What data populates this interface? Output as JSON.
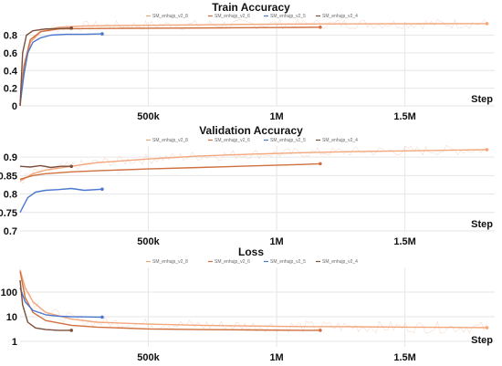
{
  "colors": {
    "SM_enhujp_v2_8": "#f2a77c",
    "SM_enhujp_v2_6": "#d0703e",
    "SM_enhujp_v2_5": "#4a78cf",
    "SM_enhujp_v2_4": "#7a4f3c",
    "noise": "#f3d3c2"
  },
  "chart_data": [
    {
      "type": "line",
      "title": "Train Accuracy",
      "xlabel": "Step",
      "ylabel": "",
      "xlim": [
        0,
        1850000
      ],
      "ylim": [
        0,
        0.95
      ],
      "yscale": "linear",
      "x_ticks": [
        500000,
        1000000,
        1500000
      ],
      "x_tick_labels": [
        "500k",
        "1M",
        "1.5M"
      ],
      "y_ticks": [
        0,
        0.2,
        0.4,
        0.6,
        0.8
      ],
      "y_tick_labels": [
        "0",
        "0.2",
        "0.4",
        "0.6",
        "0.8"
      ],
      "legend": [
        "SM_enhujp_v2_8",
        "SM_enhujp_v2_6",
        "SM_enhujp_v2_5",
        "SM_enhujp_v2_4"
      ],
      "series": [
        {
          "name": "SM_enhujp_v2_8",
          "x": [
            0,
            15000,
            40000,
            80000,
            150000,
            250000,
            400000,
            600000,
            800000,
            1000000,
            1200000,
            1400000,
            1600000,
            1800000,
            1820000
          ],
          "y": [
            0,
            0.4,
            0.72,
            0.84,
            0.89,
            0.905,
            0.91,
            0.915,
            0.92,
            0.925,
            0.927,
            0.928,
            0.929,
            0.93,
            0.93
          ]
        },
        {
          "name": "SM_enhujp_v2_6",
          "x": [
            0,
            15000,
            40000,
            80000,
            150000,
            250000,
            400000,
            600000,
            800000,
            1000000,
            1100000,
            1170000
          ],
          "y": [
            0,
            0.45,
            0.75,
            0.84,
            0.87,
            0.875,
            0.878,
            0.88,
            0.883,
            0.886,
            0.888,
            0.89
          ]
        },
        {
          "name": "SM_enhujp_v2_5",
          "x": [
            0,
            15000,
            30000,
            50000,
            80000,
            120000,
            180000,
            250000,
            320000
          ],
          "y": [
            0.02,
            0.35,
            0.6,
            0.72,
            0.77,
            0.8,
            0.81,
            0.81,
            0.815
          ]
        },
        {
          "name": "SM_enhujp_v2_4",
          "x": [
            0,
            10000,
            25000,
            50000,
            100000,
            150000,
            200000
          ],
          "y": [
            0.0,
            0.6,
            0.8,
            0.85,
            0.87,
            0.875,
            0.88
          ]
        }
      ]
    },
    {
      "type": "line",
      "title": "Validation Accuracy",
      "xlabel": "Step",
      "ylabel": "",
      "xlim": [
        0,
        1850000
      ],
      "ylim": [
        0.7,
        0.93
      ],
      "yscale": "linear",
      "x_ticks": [
        500000,
        1000000,
        1500000
      ],
      "x_tick_labels": [
        "500k",
        "1M",
        "1.5M"
      ],
      "y_ticks": [
        0.7,
        0.75,
        0.8,
        0.85,
        0.9
      ],
      "y_tick_labels": [
        "0.7",
        "0.75",
        "0.8",
        "0.85",
        "0.9"
      ],
      "legend": [
        "SM_enhujp_v2_8",
        "SM_enhujp_v2_6",
        "SM_enhujp_v2_5",
        "SM_enhujp_v2_4"
      ],
      "series": [
        {
          "name": "SM_enhujp_v2_8",
          "x": [
            0,
            50000,
            100000,
            200000,
            300000,
            500000,
            700000,
            900000,
            1100000,
            1300000,
            1500000,
            1700000,
            1820000
          ],
          "y": [
            0.835,
            0.855,
            0.865,
            0.875,
            0.885,
            0.895,
            0.903,
            0.908,
            0.912,
            0.915,
            0.917,
            0.919,
            0.92
          ]
        },
        {
          "name": "SM_enhujp_v2_6",
          "x": [
            0,
            50000,
            100000,
            200000,
            300000,
            500000,
            700000,
            900000,
            1100000,
            1170000
          ],
          "y": [
            0.84,
            0.85,
            0.855,
            0.86,
            0.863,
            0.868,
            0.872,
            0.876,
            0.88,
            0.882
          ]
        },
        {
          "name": "SM_enhujp_v2_5",
          "x": [
            0,
            30000,
            60000,
            100000,
            150000,
            200000,
            250000,
            320000
          ],
          "y": [
            0.75,
            0.79,
            0.805,
            0.81,
            0.812,
            0.815,
            0.81,
            0.813
          ]
        },
        {
          "name": "SM_enhujp_v2_4",
          "x": [
            0,
            40000,
            80000,
            120000,
            160000,
            200000
          ],
          "y": [
            0.875,
            0.873,
            0.877,
            0.872,
            0.875,
            0.875
          ]
        }
      ]
    },
    {
      "type": "line",
      "title": "Loss",
      "xlabel": "Step",
      "ylabel": "",
      "xlim": [
        0,
        1850000
      ],
      "ylim": [
        0.6,
        1000
      ],
      "yscale": "log",
      "x_ticks": [
        500000,
        1000000,
        1500000
      ],
      "x_tick_labels": [
        "500k",
        "1M",
        "1.5M"
      ],
      "y_ticks": [
        1,
        10,
        100
      ],
      "y_tick_labels": [
        "1",
        "10",
        "100"
      ],
      "legend": [
        "SM_enhujp_v2_8",
        "SM_enhujp_v2_6",
        "SM_enhujp_v2_5",
        "SM_enhujp_v2_4"
      ],
      "series": [
        {
          "name": "SM_enhujp_v2_8",
          "x": [
            0,
            20000,
            50000,
            100000,
            200000,
            300000,
            500000,
            700000,
            900000,
            1100000,
            1300000,
            1500000,
            1700000,
            1820000
          ],
          "y": [
            800,
            150,
            40,
            15,
            8,
            6,
            5,
            4.5,
            4.2,
            4,
            3.9,
            3.8,
            3.7,
            3.6
          ]
        },
        {
          "name": "SM_enhujp_v2_6",
          "x": [
            0,
            20000,
            50000,
            100000,
            200000,
            300000,
            500000,
            700000,
            900000,
            1100000,
            1170000
          ],
          "y": [
            700,
            60,
            15,
            7,
            4.5,
            3.8,
            3.2,
            3.0,
            2.9,
            2.8,
            2.8
          ]
        },
        {
          "name": "SM_enhujp_v2_5",
          "x": [
            0,
            20000,
            50000,
            100000,
            150000,
            200000,
            250000,
            320000
          ],
          "y": [
            150,
            40,
            18,
            12,
            10.5,
            10,
            9.8,
            9.6
          ]
        },
        {
          "name": "SM_enhujp_v2_4",
          "x": [
            0,
            10000,
            30000,
            60000,
            100000,
            150000,
            200000
          ],
          "y": [
            300,
            30,
            6,
            3.5,
            3,
            2.8,
            2.8
          ]
        }
      ]
    }
  ]
}
